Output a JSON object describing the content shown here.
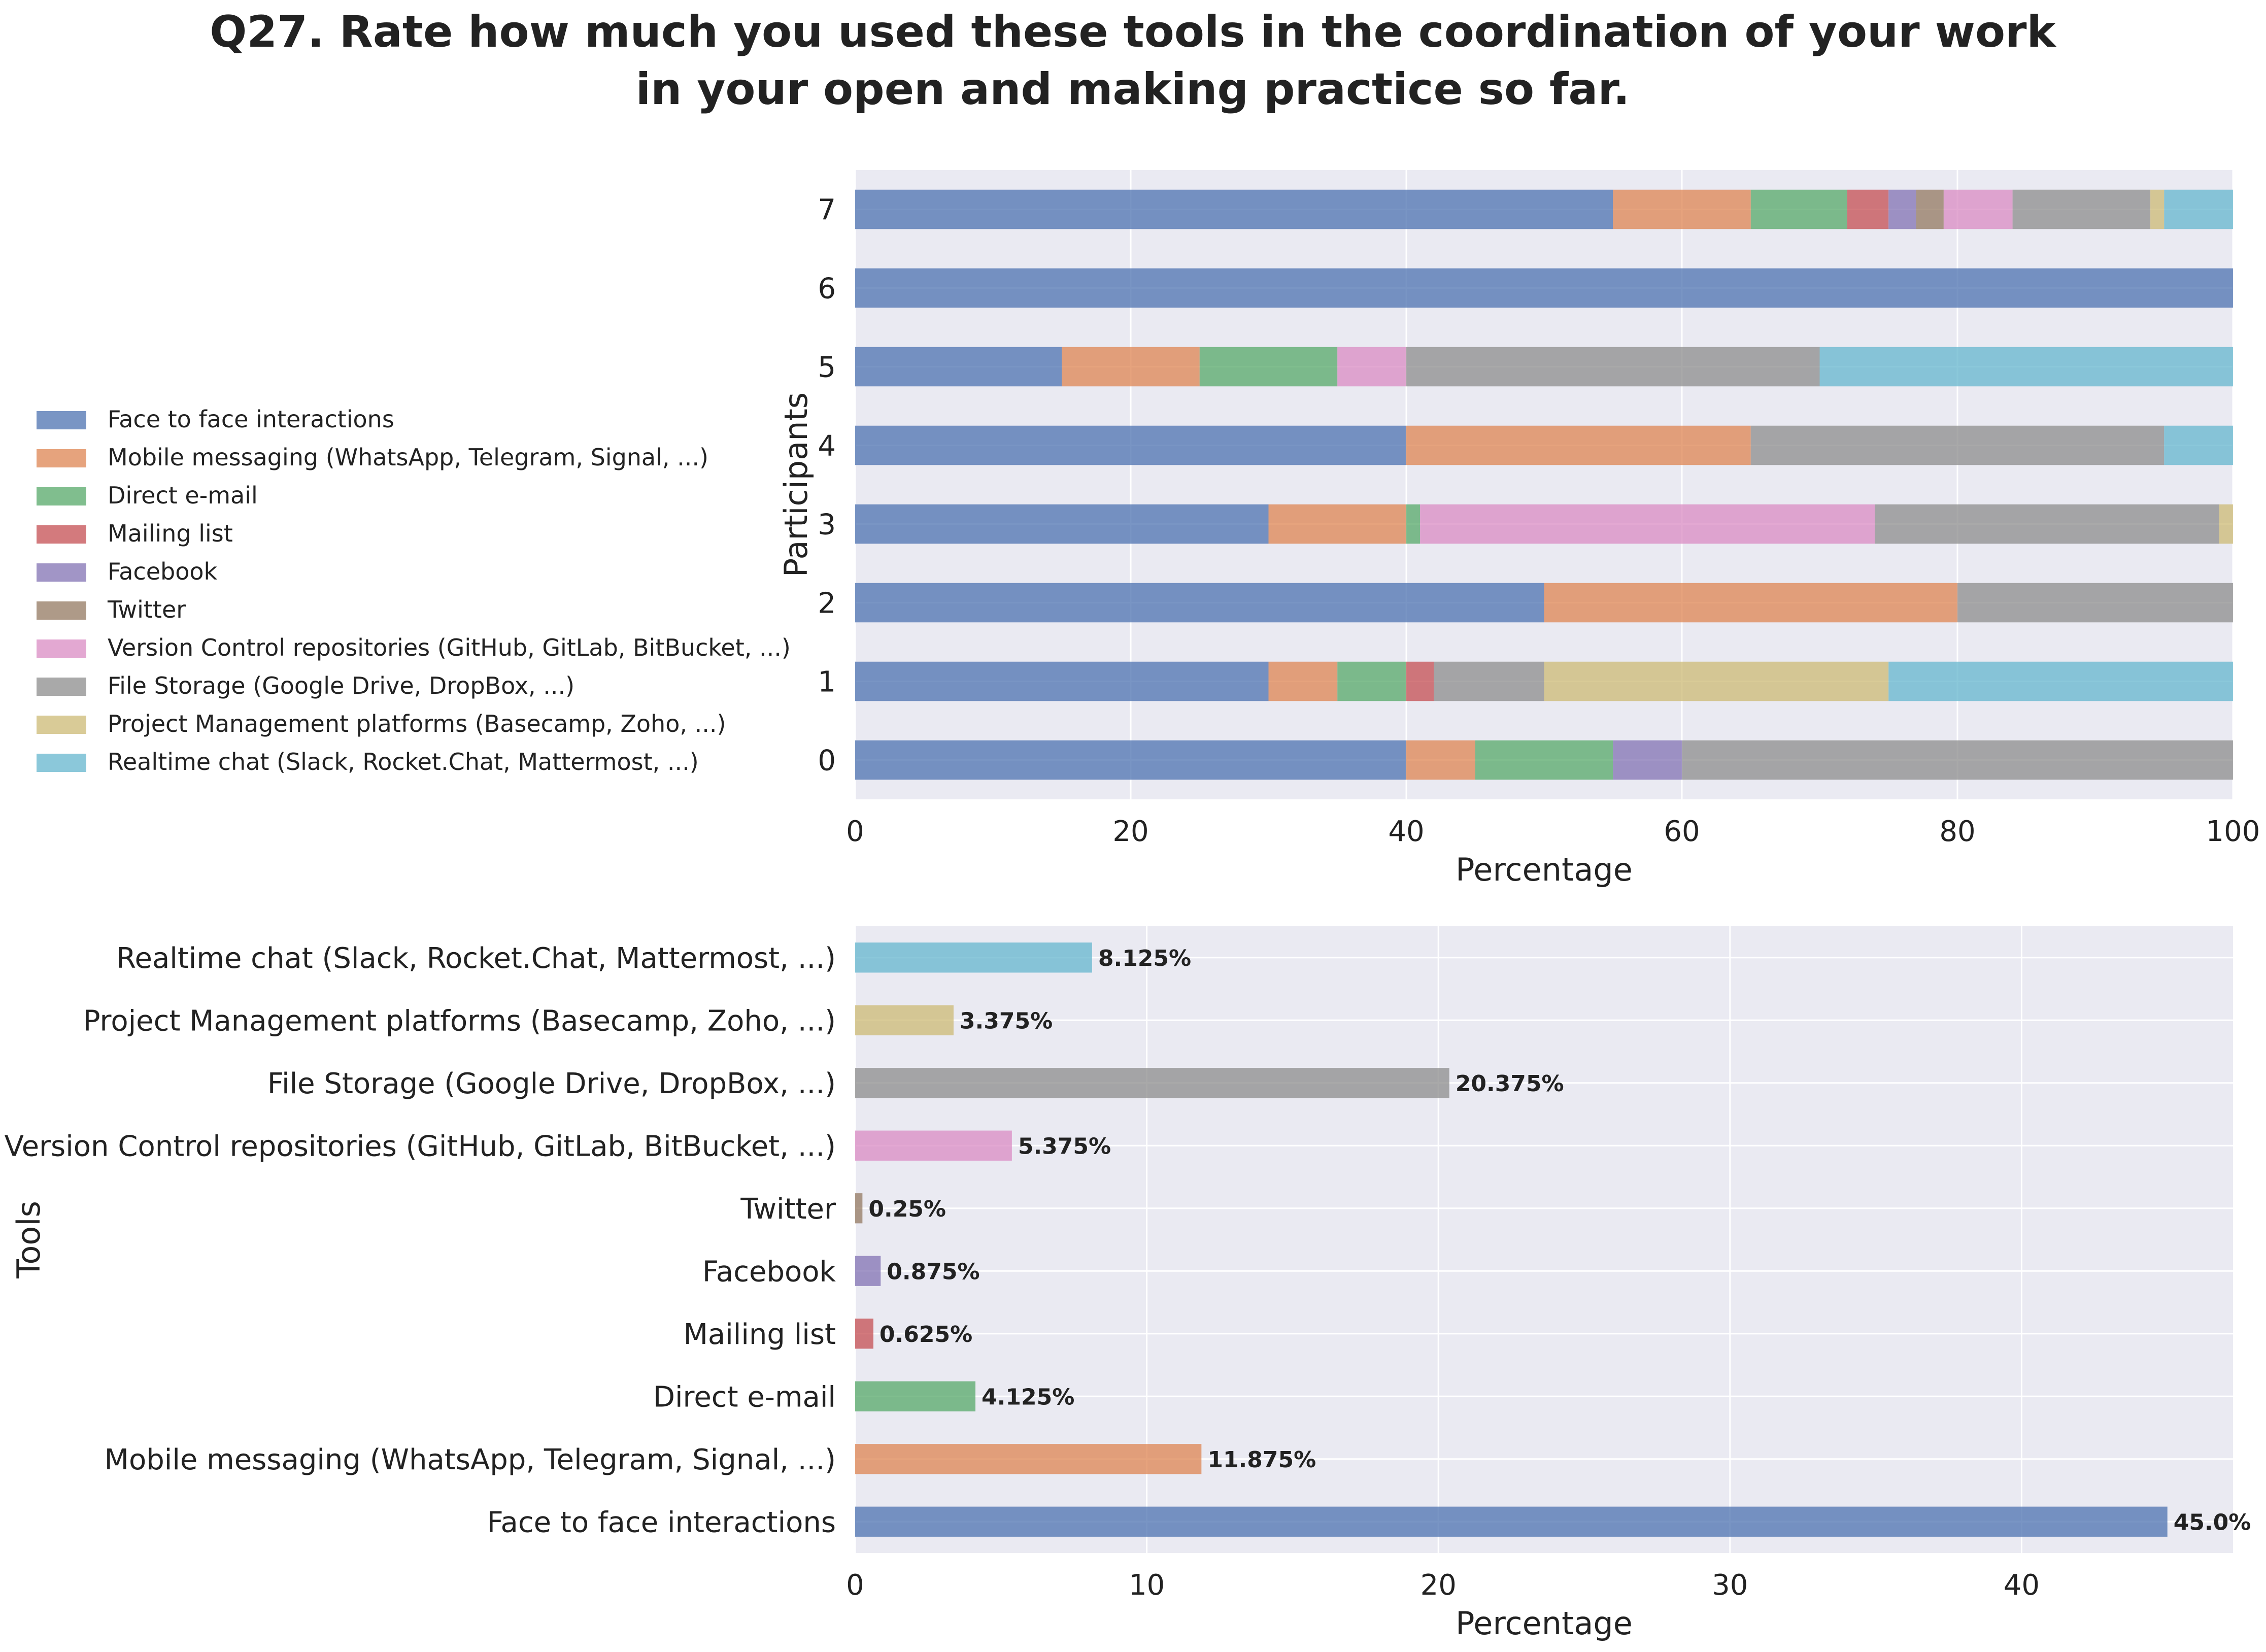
{
  "chart_data": [
    {
      "type": "bar",
      "orientation": "horizontal",
      "stacked": true,
      "title": "Q27. Rate how much you used these tools in the coordination of your work in your open and making practice so far.",
      "xlabel": "Percentage",
      "ylabel": "Participants",
      "xlim": [
        0,
        100
      ],
      "xticks": [
        "0",
        "20",
        "40",
        "60",
        "80",
        "100"
      ],
      "categories": [
        "0",
        "1",
        "2",
        "3",
        "4",
        "5",
        "6",
        "7"
      ],
      "grid": true,
      "legend_position": "left",
      "series": [
        {
          "name": "Face to face interactions",
          "color": "#4C72B0",
          "values": [
            40,
            30,
            50,
            30,
            40,
            15,
            100,
            55
          ]
        },
        {
          "name": "Mobile messaging (WhatsApp, Telegram, Signal, ...)",
          "color": "#DD8452",
          "values": [
            5,
            5,
            30,
            10,
            25,
            10,
            0,
            10
          ]
        },
        {
          "name": "Direct e-mail",
          "color": "#55A868",
          "values": [
            10,
            5,
            0,
            1,
            0,
            10,
            0,
            7
          ]
        },
        {
          "name": "Mailing list",
          "color": "#C44E52",
          "values": [
            0,
            2,
            0,
            0,
            0,
            0,
            0,
            3
          ]
        },
        {
          "name": "Facebook",
          "color": "#8172B3",
          "values": [
            5,
            0,
            0,
            0,
            0,
            0,
            0,
            2
          ]
        },
        {
          "name": "Twitter",
          "color": "#937860",
          "values": [
            0,
            0,
            0,
            0,
            0,
            0,
            0,
            2
          ]
        },
        {
          "name": "Version Control repositories (GitHub, GitLab, BitBucket, ...)",
          "color": "#DA8BC3",
          "values": [
            0,
            0,
            0,
            33,
            0,
            5,
            0,
            5
          ]
        },
        {
          "name": "File Storage (Google Drive, DropBox, ...)",
          "color": "#8C8C8C",
          "values": [
            40,
            8,
            20,
            25,
            30,
            30,
            0,
            10
          ]
        },
        {
          "name": "Project Management platforms (Basecamp, Zoho, ...)",
          "color": "#CCB974",
          "values": [
            0,
            25,
            0,
            1,
            0,
            0,
            0,
            1
          ]
        },
        {
          "name": "Realtime chat (Slack, Rocket.Chat, Mattermost, ...)",
          "color": "#64B5CD",
          "values": [
            0,
            25,
            0,
            0,
            5,
            30,
            0,
            5
          ]
        }
      ]
    },
    {
      "type": "bar",
      "orientation": "horizontal",
      "xlabel": "Percentage",
      "ylabel": "Tools",
      "xlim": [
        0,
        47.25
      ],
      "xticks": [
        "0",
        "10",
        "20",
        "30",
        "40"
      ],
      "grid": true,
      "categories": [
        "Face to face interactions",
        "Mobile messaging (WhatsApp, Telegram, Signal, ...)",
        "Direct e-mail",
        "Mailing list",
        "Facebook",
        "Twitter",
        "Version Control repositories (GitHub, GitLab, BitBucket, ...)",
        "File Storage (Google Drive, DropBox, ...)",
        "Project Management platforms (Basecamp, Zoho, ...)",
        "Realtime chat (Slack, Rocket.Chat, Mattermost, ...)"
      ],
      "values": [
        45.0,
        11.875,
        4.125,
        0.625,
        0.875,
        0.25,
        5.375,
        20.375,
        3.375,
        8.125
      ],
      "data_labels": [
        "45.0%",
        "11.875%",
        "4.125%",
        "0.625%",
        "0.875%",
        "0.25%",
        "5.375%",
        "20.375%",
        "3.375%",
        "8.125%"
      ],
      "colors": [
        "#4C72B0",
        "#DD8452",
        "#55A868",
        "#C44E52",
        "#8172B3",
        "#937860",
        "#DA8BC3",
        "#8C8C8C",
        "#CCB974",
        "#64B5CD"
      ]
    }
  ]
}
